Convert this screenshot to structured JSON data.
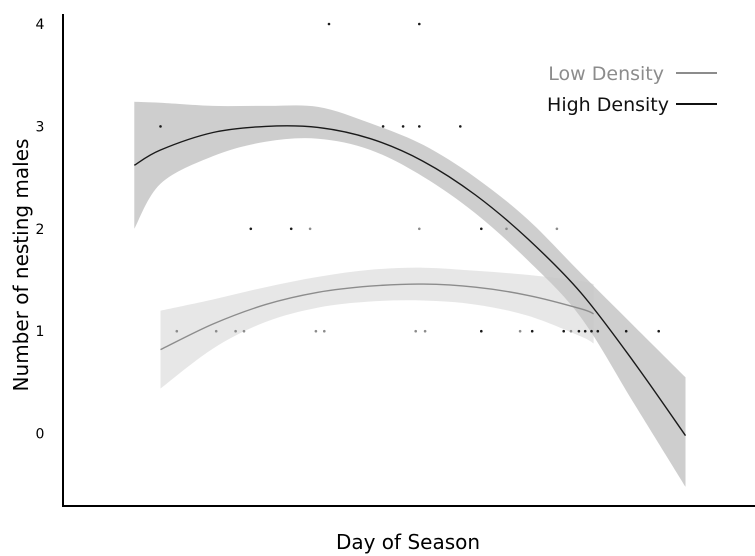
{
  "chart_data": {
    "type": "scatter",
    "xlabel": "Day of Season",
    "ylabel": "Number of nesting males",
    "xlim": [
      0,
      100
    ],
    "ylim": [
      -0.72,
      4.1
    ],
    "yticks": [
      0,
      1,
      2,
      3,
      4
    ],
    "x_tick_labels": "none",
    "grid": false,
    "legend": "top-right",
    "series": [
      {
        "name": "Low Density",
        "color": "#8c8c8c",
        "band_color": "#e3e3e3",
        "points": [
          {
            "x": 13.1,
            "y": 1
          },
          {
            "x": 20.6,
            "y": 1
          },
          {
            "x": 24.3,
            "y": 1
          },
          {
            "x": 25.9,
            "y": 1
          },
          {
            "x": 38.5,
            "y": 2
          },
          {
            "x": 39.6,
            "y": 1
          },
          {
            "x": 41.2,
            "y": 1
          },
          {
            "x": 58.6,
            "y": 1
          },
          {
            "x": 59.3,
            "y": 2
          },
          {
            "x": 60.4,
            "y": 1
          },
          {
            "x": 75.9,
            "y": 2
          },
          {
            "x": 78.5,
            "y": 1
          },
          {
            "x": 85.5,
            "y": 2
          },
          {
            "x": 88.2,
            "y": 1
          }
        ],
        "fit_x": [
          10,
          20,
          30,
          40,
          50,
          60,
          70,
          80,
          90,
          92.5
        ],
        "fit_y": [
          0.82,
          1.07,
          1.26,
          1.38,
          1.44,
          1.46,
          1.43,
          1.35,
          1.22,
          1.17
        ],
        "band_lower": [
          0.44,
          0.83,
          1.09,
          1.23,
          1.29,
          1.3,
          1.26,
          1.15,
          0.95,
          0.88
        ],
        "band_upper": [
          1.2,
          1.31,
          1.43,
          1.53,
          1.6,
          1.62,
          1.59,
          1.55,
          1.49,
          1.46
        ]
      },
      {
        "name": "High Density",
        "color": "#1a1a1a",
        "band_color": "#c6c6c6",
        "points": [
          {
            "x": 10,
            "y": 3
          },
          {
            "x": 27.2,
            "y": 2
          },
          {
            "x": 34.9,
            "y": 2
          },
          {
            "x": 42.1,
            "y": 4
          },
          {
            "x": 52.4,
            "y": 3
          },
          {
            "x": 56.2,
            "y": 3
          },
          {
            "x": 59.3,
            "y": 4
          },
          {
            "x": 59.3,
            "y": 3
          },
          {
            "x": 67.1,
            "y": 3
          },
          {
            "x": 71.1,
            "y": 2
          },
          {
            "x": 71.1,
            "y": 1
          },
          {
            "x": 80.8,
            "y": 1
          },
          {
            "x": 86.8,
            "y": 1
          },
          {
            "x": 89.7,
            "y": 1
          },
          {
            "x": 90.9,
            "y": 1
          },
          {
            "x": 92.1,
            "y": 1
          },
          {
            "x": 93.3,
            "y": 1
          },
          {
            "x": 98.7,
            "y": 1
          },
          {
            "x": 104.9,
            "y": 1
          }
        ],
        "fit_x": [
          5,
          10,
          20,
          30,
          40,
          50,
          60,
          70,
          80,
          90,
          100,
          110
        ],
        "fit_y": [
          2.62,
          2.77,
          2.94,
          3.0,
          2.99,
          2.88,
          2.66,
          2.33,
          1.9,
          1.38,
          0.71,
          -0.02
        ],
        "band_lower": [
          2.0,
          2.44,
          2.71,
          2.85,
          2.88,
          2.77,
          2.51,
          2.15,
          1.69,
          1.14,
          0.31,
          -0.52
        ],
        "band_upper": [
          3.24,
          3.23,
          3.2,
          3.2,
          3.19,
          3.03,
          2.82,
          2.5,
          2.09,
          1.57,
          1.06,
          0.55
        ]
      }
    ]
  }
}
